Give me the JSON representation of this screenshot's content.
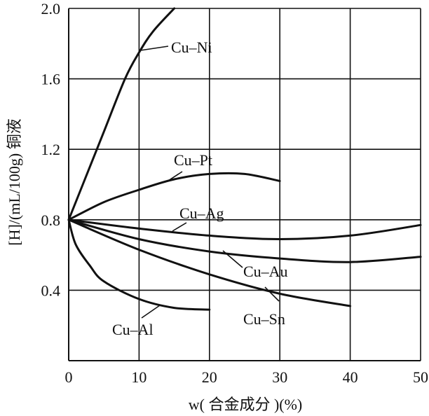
{
  "chart_data": {
    "type": "line",
    "title": "",
    "xlabel": "w( 合金成分 )(%)",
    "ylabel": "[H]/(mL/100g) 铜液",
    "xlim": [
      0,
      50
    ],
    "ylim": [
      0,
      2.0
    ],
    "grid": true,
    "x_ticks": [
      "0",
      "10",
      "20",
      "30",
      "40",
      "50"
    ],
    "y_ticks": [
      "0.4",
      "0.8",
      "1.2",
      "1.6",
      "2.0"
    ],
    "series": [
      {
        "name": "Cu–Ni",
        "x": [
          0,
          2,
          5,
          8,
          10,
          12,
          15
        ],
        "y": [
          0.8,
          1.0,
          1.3,
          1.6,
          1.75,
          1.87,
          2.0
        ]
      },
      {
        "name": "Cu–Pt",
        "x": [
          0,
          5,
          10,
          15,
          20,
          25,
          30
        ],
        "y": [
          0.8,
          0.9,
          0.97,
          1.03,
          1.06,
          1.06,
          1.02
        ]
      },
      {
        "name": "Cu–Ag",
        "x": [
          0,
          10,
          20,
          30,
          40,
          50
        ],
        "y": [
          0.8,
          0.75,
          0.71,
          0.69,
          0.71,
          0.77
        ]
      },
      {
        "name": "Cu–Au",
        "x": [
          0,
          10,
          20,
          30,
          40,
          50
        ],
        "y": [
          0.8,
          0.69,
          0.62,
          0.58,
          0.56,
          0.59
        ]
      },
      {
        "name": "Cu–Sn",
        "x": [
          0,
          10,
          20,
          30,
          40
        ],
        "y": [
          0.8,
          0.63,
          0.49,
          0.38,
          0.31
        ]
      },
      {
        "name": "Cu–Al",
        "x": [
          0,
          1,
          3,
          5,
          10,
          15,
          20
        ],
        "y": [
          0.8,
          0.66,
          0.54,
          0.45,
          0.35,
          0.3,
          0.29
        ]
      }
    ]
  }
}
